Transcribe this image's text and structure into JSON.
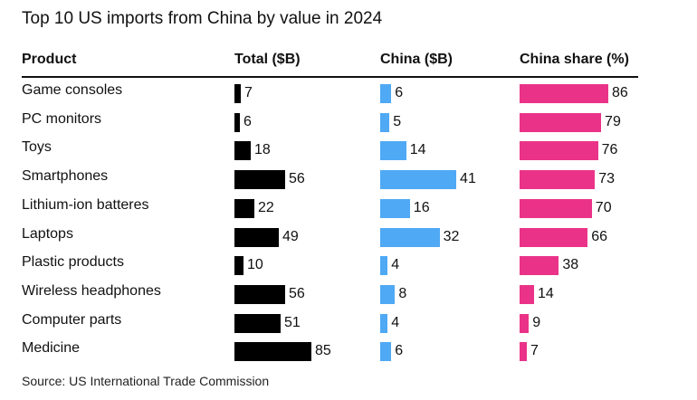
{
  "chart_data": {
    "type": "table",
    "title": "Top 10 US imports from China by value in 2024",
    "columns": [
      "Product",
      "Total ($B)",
      "China ($B)",
      "China share (%)"
    ],
    "rows": [
      {
        "product": "Game consoles",
        "total": 7,
        "china": 6,
        "share": 86
      },
      {
        "product": "PC monitors",
        "total": 6,
        "china": 5,
        "share": 79
      },
      {
        "product": "Toys",
        "total": 18,
        "china": 14,
        "share": 76
      },
      {
        "product": "Smartphones",
        "total": 56,
        "china": 41,
        "share": 73
      },
      {
        "product": "Lithium-ion batteres",
        "total": 22,
        "china": 16,
        "share": 70
      },
      {
        "product": "Laptops",
        "total": 49,
        "china": 32,
        "share": 66
      },
      {
        "product": "Plastic products",
        "total": 10,
        "china": 4,
        "share": 38
      },
      {
        "product": "Wireless headphones",
        "total": 56,
        "china": 8,
        "share": 14
      },
      {
        "product": "Computer parts",
        "total": 51,
        "china": 4,
        "share": 9
      },
      {
        "product": "Medicine",
        "total": 85,
        "china": 6,
        "share": 7
      }
    ],
    "series_colors": {
      "total": "#000000",
      "china": "#4fa9f5",
      "share": "#ea3388"
    },
    "source": "Source: US International Trade Commission"
  }
}
